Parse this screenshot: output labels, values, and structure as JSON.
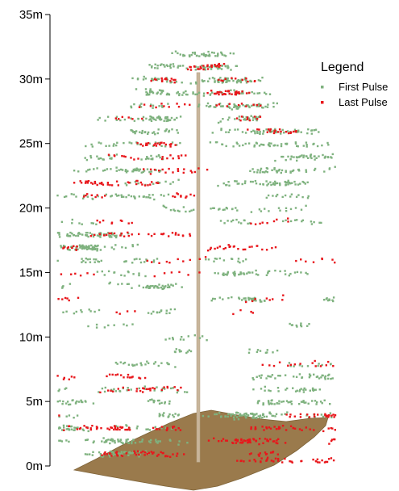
{
  "chart_data": {
    "type": "scatter",
    "title": "",
    "xlabel": "",
    "ylabel": "",
    "ylim": [
      0,
      35
    ],
    "y_ticks": [
      {
        "value": 0,
        "label": "0m"
      },
      {
        "value": 5,
        "label": "5m"
      },
      {
        "value": 10,
        "label": "10m"
      },
      {
        "value": 15,
        "label": "15m"
      },
      {
        "value": 20,
        "label": "20m"
      },
      {
        "value": 25,
        "label": "25m"
      },
      {
        "value": 30,
        "label": "30m"
      },
      {
        "value": 35,
        "label": "35m"
      }
    ],
    "grid": false,
    "legend": {
      "title": "Legend",
      "placement": "top-right",
      "entries": [
        {
          "label": "First Pulse",
          "color": "#7fb27f"
        },
        {
          "label": "Last Pulse",
          "color": "#e8161b"
        }
      ]
    },
    "trunk_height_m": 30.5,
    "ground_color": "#9a7a4c",
    "trunk_color": "#c8b59a",
    "series": [
      {
        "name": "First Pulse",
        "color": "#7fb27f",
        "clusters": [
          {
            "h": 32.0,
            "w": 1.0,
            "n": 46
          },
          {
            "h": 31.0,
            "w": 1.6,
            "n": 55
          },
          {
            "h": 30.0,
            "w": 2.2,
            "n": 80
          },
          {
            "h": 29.0,
            "w": 2.6,
            "n": 70
          },
          {
            "h": 28.0,
            "w": 2.8,
            "n": 70
          },
          {
            "h": 27.0,
            "w": 3.6,
            "n": 80
          },
          {
            "h": 26.0,
            "w": 4.2,
            "n": 85
          },
          {
            "h": 25.0,
            "w": 4.6,
            "n": 80
          },
          {
            "h": 24.0,
            "w": 5.0,
            "n": 75
          },
          {
            "h": 23.0,
            "w": 5.8,
            "n": 85
          },
          {
            "h": 22.0,
            "w": 5.8,
            "n": 80
          },
          {
            "h": 21.0,
            "w": 5.4,
            "n": 55
          },
          {
            "h": 20.0,
            "w": 5.2,
            "n": 40
          },
          {
            "h": 19.0,
            "w": 5.0,
            "n": 35
          },
          {
            "h": 18.0,
            "w": 5.6,
            "n": 70
          },
          {
            "h": 17.0,
            "w": 5.8,
            "n": 75
          },
          {
            "h": 16.0,
            "w": 6.2,
            "n": 70
          },
          {
            "h": 15.0,
            "w": 6.4,
            "n": 55
          },
          {
            "h": 14.0,
            "w": 6.0,
            "n": 55
          },
          {
            "h": 13.0,
            "w": 6.0,
            "n": 45
          },
          {
            "h": 12.0,
            "w": 5.0,
            "n": 25
          },
          {
            "h": 11.0,
            "w": 4.0,
            "n": 20
          },
          {
            "h": 10.0,
            "w": 3.0,
            "n": 12
          },
          {
            "h": 9.0,
            "w": 4.0,
            "n": 20
          },
          {
            "h": 8.0,
            "w": 5.0,
            "n": 35
          },
          {
            "h": 7.0,
            "w": 6.0,
            "n": 45
          },
          {
            "h": 6.0,
            "w": 6.8,
            "n": 70
          },
          {
            "h": 5.0,
            "w": 7.2,
            "n": 100
          },
          {
            "h": 4.0,
            "w": 7.2,
            "n": 110
          },
          {
            "h": 3.0,
            "w": 7.4,
            "n": 90
          },
          {
            "h": 2.0,
            "w": 7.4,
            "n": 70
          },
          {
            "h": 1.0,
            "w": 6.8,
            "n": 60
          }
        ]
      },
      {
        "name": "Last Pulse",
        "color": "#e8161b",
        "clusters": [
          {
            "h": 31.0,
            "w": 1.2,
            "n": 25
          },
          {
            "h": 30.0,
            "w": 1.8,
            "n": 30
          },
          {
            "h": 29.0,
            "w": 2.2,
            "n": 30
          },
          {
            "h": 28.0,
            "w": 2.4,
            "n": 22
          },
          {
            "h": 27.0,
            "w": 3.0,
            "n": 18
          },
          {
            "h": 26.0,
            "w": 3.4,
            "n": 22
          },
          {
            "h": 25.0,
            "w": 3.8,
            "n": 22
          },
          {
            "h": 24.0,
            "w": 4.0,
            "n": 18
          },
          {
            "h": 23.0,
            "w": 4.6,
            "n": 18
          },
          {
            "h": 22.0,
            "w": 4.6,
            "n": 35
          },
          {
            "h": 21.0,
            "w": 4.2,
            "n": 20
          },
          {
            "h": 19.0,
            "w": 4.0,
            "n": 18
          },
          {
            "h": 18.0,
            "w": 4.8,
            "n": 30
          },
          {
            "h": 17.0,
            "w": 5.2,
            "n": 35
          },
          {
            "h": 16.0,
            "w": 5.2,
            "n": 20
          },
          {
            "h": 15.0,
            "w": 5.0,
            "n": 12
          },
          {
            "h": 13.0,
            "w": 5.4,
            "n": 16
          },
          {
            "h": 12.0,
            "w": 4.4,
            "n": 8
          },
          {
            "h": 8.0,
            "w": 5.4,
            "n": 20
          },
          {
            "h": 7.0,
            "w": 5.8,
            "n": 30
          },
          {
            "h": 6.0,
            "w": 6.4,
            "n": 25
          },
          {
            "h": 4.0,
            "w": 7.0,
            "n": 45
          },
          {
            "h": 3.0,
            "w": 7.4,
            "n": 110
          },
          {
            "h": 2.0,
            "w": 7.4,
            "n": 80
          },
          {
            "h": 1.0,
            "w": 7.0,
            "n": 70
          },
          {
            "h": 0.5,
            "w": 6.5,
            "n": 40
          }
        ]
      }
    ]
  }
}
